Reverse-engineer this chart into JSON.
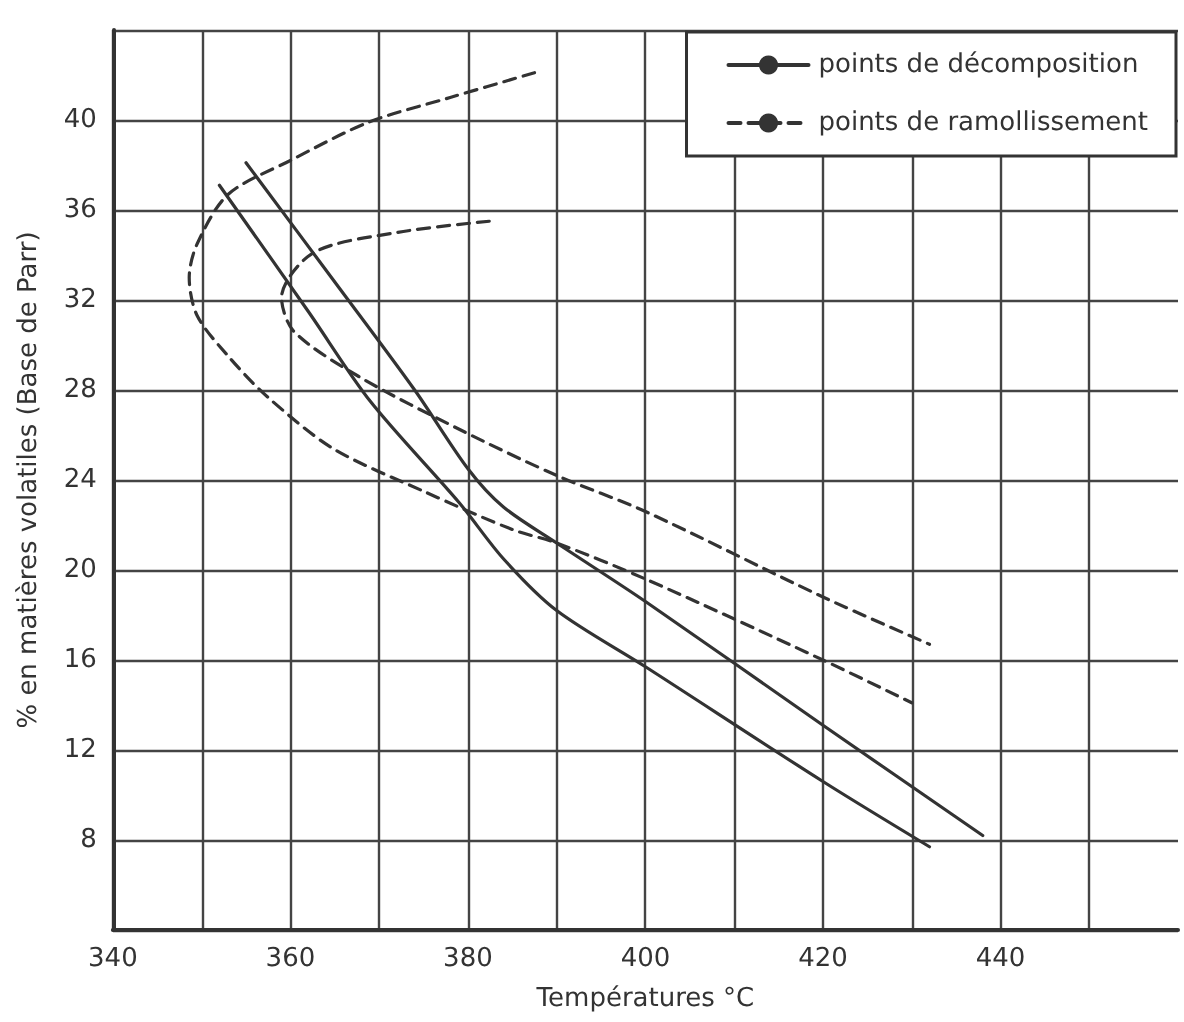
{
  "chart_data": {
    "type": "line",
    "xlabel": "Températures °C",
    "ylabel": "% en matières volatiles (Base de Parr)",
    "xlim": [
      340,
      460
    ],
    "xticks": [
      340,
      {
        "value": 350,
        "label": null
      },
      360,
      {
        "value": 370,
        "label": null
      },
      380,
      {
        "value": 390,
        "label": null
      },
      400,
      {
        "value": 410,
        "label": null
      },
      420,
      {
        "value": 430,
        "label": null
      },
      440,
      {
        "value": 450,
        "label": null
      }
    ],
    "ylim": [
      4,
      44
    ],
    "yticks": [
      {
        "value": 4,
        "label": null
      },
      8,
      12,
      16,
      20,
      24,
      28,
      32,
      36,
      40,
      {
        "value": 44,
        "label": null
      }
    ],
    "grid": true,
    "legend": "top right",
    "marker": "none",
    "series": [
      {
        "name": "points de décomposition",
        "color": "#333333",
        "line_style": "solid",
        "x": [
          352,
          362,
          369,
          379,
          384,
          390,
          400,
          420,
          432
        ],
        "values": [
          37.1,
          31.5,
          27.5,
          23,
          20.5,
          18.2,
          15.7,
          10.6,
          7.7
        ]
      },
      {
        "color": "#333333",
        "line_style": "solid",
        "x": [
          355,
          365,
          374,
          380,
          384,
          390,
          400,
          420,
          438
        ],
        "values": [
          38.1,
          32.8,
          28,
          24.5,
          22.8,
          21.2,
          18.6,
          13.1,
          8.2
        ]
      },
      {
        "name": "points de ramollissement",
        "color": "#333333",
        "line_style": "dashed",
        "x": [
          387.5,
          378,
          368.8,
          360,
          353,
          349.5,
          348.6,
          349.5,
          353,
          357.4,
          364.8,
          375,
          385,
          390,
          400,
          420,
          430
        ],
        "values": [
          42.1,
          41,
          39.9,
          38.2,
          36.7,
          34.5,
          33,
          31.3,
          29.5,
          27.7,
          25.4,
          23.5,
          21.8,
          21.2,
          19.6,
          16,
          14.1
        ]
      },
      {
        "color": "#333333",
        "line_style": "dashed",
        "x": [
          382.4,
          372,
          362.6,
          359,
          360.4,
          367.7,
          379.3,
          390,
          400,
          420,
          432
        ],
        "values": [
          35.5,
          35,
          34.1,
          32.1,
          30.6,
          28.6,
          26.2,
          24.2,
          22.6,
          18.8,
          16.7
        ]
      }
    ]
  }
}
